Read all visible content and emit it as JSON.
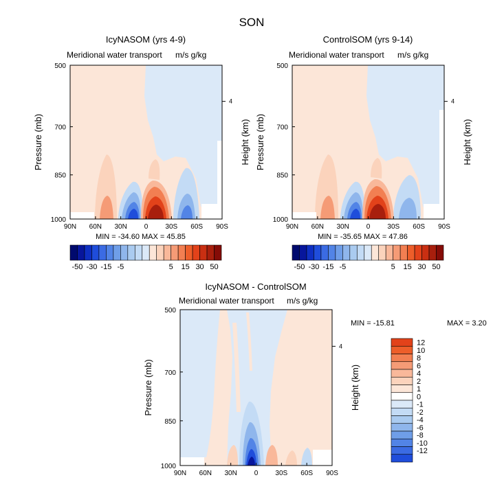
{
  "figure_title": "SON",
  "colors": {
    "neg": [
      "#dbe9f8",
      "#c3dbf5",
      "#aacbf0",
      "#8fb6ec",
      "#6f9ee8",
      "#5284e6",
      "#3b6be3",
      "#1f4ddb",
      "#0e2fc2",
      "#07169c",
      "#000a6e"
    ],
    "pos": [
      "#fce6d8",
      "#fbd3bc",
      "#f9b89a",
      "#f59b76",
      "#f27f52",
      "#ed5e2a",
      "#e2421a",
      "#c92f12",
      "#a81f0d",
      "#850c07"
    ]
  },
  "chart_data": [
    {
      "type": "heatmap",
      "title": "IcyNASOM (yrs 4-9)",
      "subtitle": "Meridional water transport",
      "units": "m/s g/kg",
      "ylabel": "Pressure (mb)",
      "ylabel_right": "Height (km)",
      "x_ticks": [
        "90N",
        "60N",
        "30N",
        "0",
        "30S",
        "60S",
        "90S"
      ],
      "y_ticks": [
        "500",
        "700",
        "850",
        "1000"
      ],
      "right_ticks": [
        "4"
      ],
      "stats": "MIN = -34.60 MAX = 45.85",
      "colorbar_labels": [
        "-50",
        "-30",
        "-15",
        "-5",
        "5",
        "15",
        "30",
        "50"
      ],
      "min": -34.6,
      "max": 45.85
    },
    {
      "type": "heatmap",
      "title": "ControlSOM (yrs 9-14)",
      "subtitle": "Meridional water transport",
      "units": "m/s g/kg",
      "ylabel": "Pressure (mb)",
      "ylabel_right": "Height (km)",
      "x_ticks": [
        "90N",
        "60N",
        "30N",
        "0",
        "30S",
        "60S",
        "90S"
      ],
      "y_ticks": [
        "500",
        "700",
        "850",
        "1000"
      ],
      "right_ticks": [
        "4"
      ],
      "stats": "MIN = -35.65 MAX = 47.86",
      "colorbar_labels": [
        "-50",
        "-30",
        "-15",
        "-5",
        "5",
        "15",
        "30",
        "50"
      ],
      "min": -35.65,
      "max": 47.86
    },
    {
      "type": "heatmap",
      "title": "IcyNASOM - ControlSOM",
      "subtitle": "Meridional water transport",
      "units": "m/s g/kg",
      "ylabel": "Pressure (mb)",
      "ylabel_right": "Height (km)",
      "x_ticks": [
        "90N",
        "60N",
        "30N",
        "0",
        "30S",
        "60S",
        "90S"
      ],
      "y_ticks": [
        "500",
        "700",
        "850",
        "1000"
      ],
      "right_ticks": [
        "4"
      ],
      "stats_min": "MIN = -15.81",
      "stats_max": "MAX = 3.20",
      "colorbar_labels": [
        "12",
        "10",
        "8",
        "6",
        "4",
        "2",
        "1",
        "0",
        "-1",
        "-2",
        "-4",
        "-6",
        "-8",
        "-10",
        "-12"
      ],
      "min": -15.81,
      "max": 3.2
    }
  ]
}
